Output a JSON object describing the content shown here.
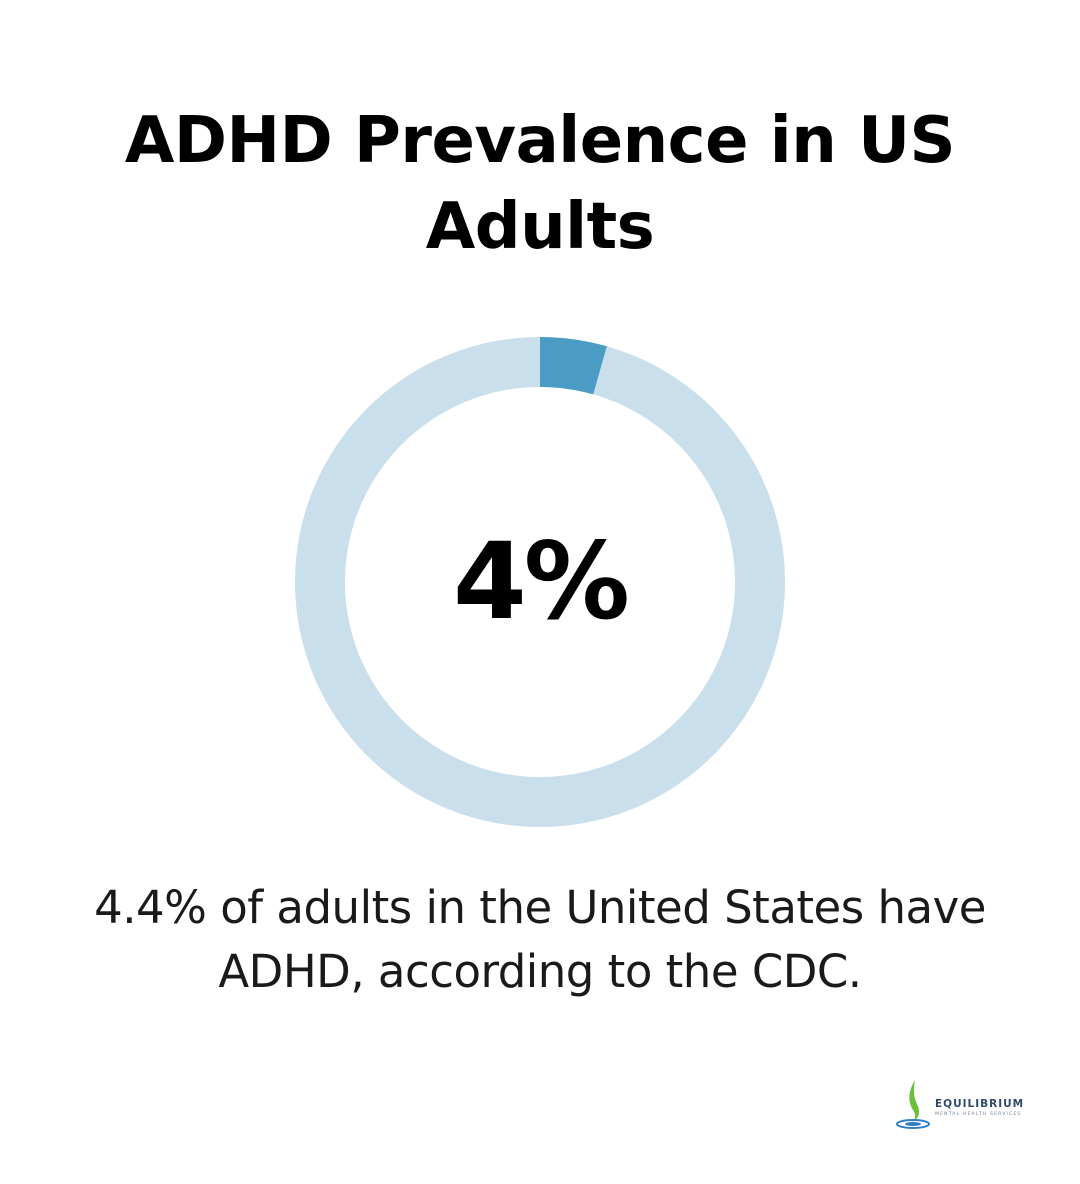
{
  "title": "ADHD Prevalence in US Adults",
  "caption": "4.4% of adults in the United States have ADHD, according to the CDC.",
  "colors": {
    "background": "#ffffff",
    "donut_filled": "#4a9cc4",
    "donut_track": "#c9e0ec",
    "text": "#000000",
    "logo_green": "#6cbf3a",
    "logo_blue": "#2f7fc1"
  },
  "chart_data": {
    "type": "pie",
    "variant": "donut",
    "center_label": "4%",
    "values": [
      4.4,
      95.6
    ],
    "start_angle": "top",
    "direction": "clockwise"
  },
  "logo": {
    "name": "EQUILIBRIUM",
    "tagline": "MENTAL HEALTH SERVICES",
    "icon": "leaf-drop-icon"
  }
}
